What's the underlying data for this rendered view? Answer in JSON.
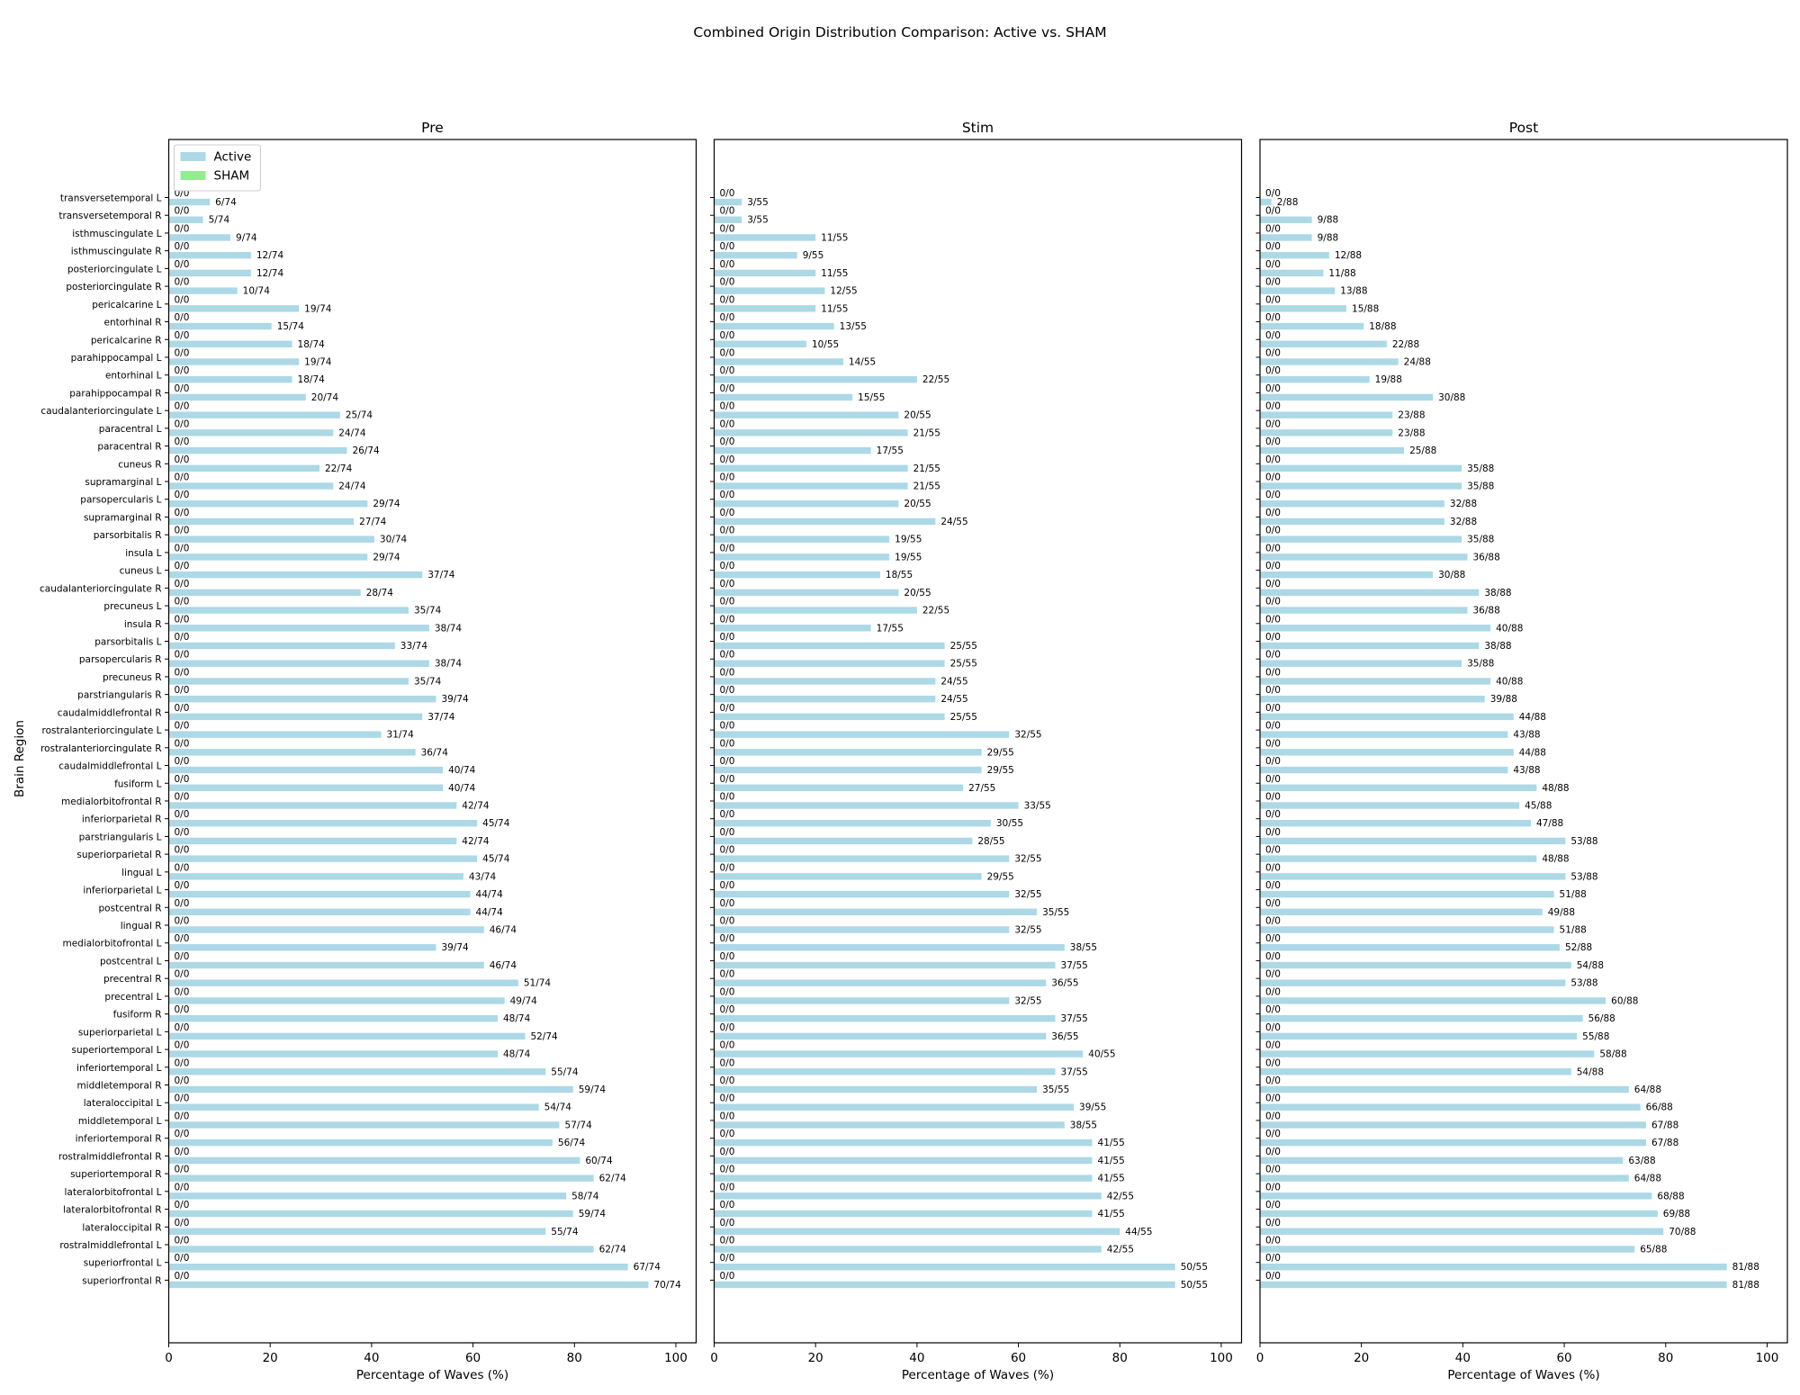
{
  "title": "Combined Origin Distribution Comparison: Active vs. SHAM",
  "chart_data": {
    "type": "bar",
    "orientation": "horizontal",
    "ylabel": "Brain Region",
    "xlabel": "Percentage of Waves (%)",
    "xlim": [
      0,
      104
    ],
    "xticks": [
      0,
      20,
      40,
      60,
      80,
      100
    ],
    "legend": {
      "placement": "top-left",
      "entries": [
        "Active",
        "SHAM"
      ]
    },
    "series_colors": {
      "Active": "#add8e6",
      "SHAM": "#90ee90"
    },
    "sham_label": "0/0",
    "categories": [
      "transversetemporal L",
      "transversetemporal R",
      "isthmuscingulate L",
      "isthmuscingulate R",
      "posteriorcingulate L",
      "posteriorcingulate R",
      "pericalcarine L",
      "entorhinal R",
      "pericalcarine R",
      "parahippocampal L",
      "entorhinal L",
      "parahippocampal R",
      "caudalanteriorcingulate L",
      "paracentral L",
      "paracentral R",
      "cuneus R",
      "supramarginal L",
      "parsopercularis L",
      "supramarginal R",
      "parsorbitalis R",
      "insula L",
      "cuneus L",
      "caudalanteriorcingulate R",
      "precuneus L",
      "insula R",
      "parsorbitalis L",
      "parsopercularis R",
      "precuneus R",
      "parstriangularis R",
      "caudalmiddlefrontal R",
      "rostralanteriorcingulate L",
      "rostralanteriorcingulate R",
      "caudalmiddlefrontal L",
      "fusiform L",
      "medialorbitofrontal R",
      "inferiorparietal R",
      "parstriangularis L",
      "superiorparietal R",
      "lingual L",
      "inferiorparietal L",
      "postcentral R",
      "lingual R",
      "medialorbitofrontal L",
      "postcentral L",
      "precentral R",
      "precentral L",
      "fusiform R",
      "superiorparietal L",
      "superiortemporal L",
      "inferiortemporal L",
      "middletemporal R",
      "lateraloccipital L",
      "middletemporal L",
      "inferiortemporal R",
      "rostralmiddlefrontal R",
      "superiortemporal R",
      "lateralorbitofrontal L",
      "lateralorbitofrontal R",
      "lateraloccipital R",
      "rostralmiddlefrontal L",
      "superiorfrontal L",
      "superiorfrontal R"
    ],
    "panels": [
      {
        "title": "Pre",
        "total": 74,
        "active_counts": [
          6,
          5,
          9,
          12,
          12,
          10,
          19,
          15,
          18,
          19,
          18,
          20,
          25,
          24,
          26,
          22,
          24,
          29,
          27,
          30,
          29,
          37,
          28,
          35,
          38,
          33,
          38,
          35,
          39,
          37,
          31,
          36,
          40,
          40,
          42,
          45,
          42,
          45,
          43,
          44,
          44,
          46,
          39,
          46,
          51,
          49,
          48,
          52,
          48,
          55,
          59,
          54,
          57,
          56,
          60,
          62,
          58,
          59,
          55,
          62,
          67,
          70
        ],
        "sham_counts": [
          0,
          0,
          0,
          0,
          0,
          0,
          0,
          0,
          0,
          0,
          0,
          0,
          0,
          0,
          0,
          0,
          0,
          0,
          0,
          0,
          0,
          0,
          0,
          0,
          0,
          0,
          0,
          0,
          0,
          0,
          0,
          0,
          0,
          0,
          0,
          0,
          0,
          0,
          0,
          0,
          0,
          0,
          0,
          0,
          0,
          0,
          0,
          0,
          0,
          0,
          0,
          0,
          0,
          0,
          0,
          0,
          0,
          0,
          0,
          0,
          0,
          0
        ],
        "labels": [
          "6/74",
          "5/74",
          "9/74",
          "12/74",
          "12/74",
          "10/74",
          "19/74",
          "15/74",
          "18/74",
          "19/74",
          "18/74",
          "20/74",
          "25/74",
          "24/74",
          "26/74",
          "22/74",
          "24/74",
          "29/74",
          "27/74",
          "30/74",
          "29/74",
          "37/74",
          "28/74",
          "35/74",
          "38/74",
          "33/74",
          "38/74",
          "35/74",
          "39/74",
          "37/74",
          "31/74",
          "36/74",
          "40/74",
          "40/74",
          "42/74",
          "45/74",
          "42/74",
          "45/74",
          "43/74",
          "44/74",
          "44/74",
          "46/74",
          "39/74",
          "46/74",
          "51/74",
          "49/74",
          "48/74",
          "52/74",
          "48/74",
          "55/74",
          "59/74",
          "54/74",
          "57/74",
          "56/74",
          "60/74",
          "62/74",
          "58/74",
          "59/74",
          "55/74",
          "62/74",
          "67/74",
          "70/74"
        ]
      },
      {
        "title": "Stim",
        "total": 55,
        "active_counts": [
          3,
          3,
          11,
          9,
          11,
          12,
          11,
          13,
          10,
          14,
          22,
          15,
          20,
          21,
          17,
          21,
          21,
          20,
          24,
          19,
          19,
          18,
          20,
          22,
          17,
          25,
          25,
          24,
          24,
          25,
          32,
          29,
          29,
          27,
          33,
          30,
          28,
          32,
          29,
          32,
          35,
          32,
          38,
          37,
          36,
          32,
          37,
          36,
          40,
          37,
          35,
          39,
          38,
          41,
          41,
          41,
          42,
          41,
          44,
          42,
          50,
          50
        ],
        "sham_counts": [
          0,
          0,
          0,
          0,
          0,
          0,
          0,
          0,
          0,
          0,
          0,
          0,
          0,
          0,
          0,
          0,
          0,
          0,
          0,
          0,
          0,
          0,
          0,
          0,
          0,
          0,
          0,
          0,
          0,
          0,
          0,
          0,
          0,
          0,
          0,
          0,
          0,
          0,
          0,
          0,
          0,
          0,
          0,
          0,
          0,
          0,
          0,
          0,
          0,
          0,
          0,
          0,
          0,
          0,
          0,
          0,
          0,
          0,
          0,
          0,
          0,
          0
        ],
        "labels": [
          "3/55",
          "3/55",
          "11/55",
          "9/55",
          "11/55",
          "12/55",
          "11/55",
          "13/55",
          "10/55",
          "14/55",
          "22/55",
          "15/55",
          "20/55",
          "21/55",
          "17/55",
          "21/55",
          "21/55",
          "20/55",
          "24/55",
          "19/55",
          "19/55",
          "18/55",
          "20/55",
          "22/55",
          "17/55",
          "25/55",
          "25/55",
          "24/55",
          "24/55",
          "25/55",
          "32/55",
          "29/55",
          "29/55",
          "27/55",
          "33/55",
          "30/55",
          "28/55",
          "32/55",
          "29/55",
          "32/55",
          "35/55",
          "32/55",
          "38/55",
          "37/55",
          "36/55",
          "32/55",
          "37/55",
          "36/55",
          "40/55",
          "37/55",
          "35/55",
          "39/55",
          "38/55",
          "41/55",
          "41/55",
          "41/55",
          "42/55",
          "41/55",
          "44/55",
          "42/55",
          "50/55",
          "50/55"
        ]
      },
      {
        "title": "Post",
        "total": 88,
        "active_counts": [
          2,
          9,
          9,
          12,
          11,
          13,
          15,
          18,
          22,
          24,
          19,
          30,
          23,
          23,
          25,
          35,
          35,
          32,
          32,
          35,
          36,
          30,
          38,
          36,
          40,
          38,
          35,
          40,
          39,
          44,
          43,
          44,
          43,
          48,
          45,
          47,
          53,
          48,
          53,
          51,
          49,
          51,
          52,
          54,
          53,
          60,
          56,
          55,
          58,
          54,
          64,
          66,
          67,
          67,
          63,
          64,
          68,
          69,
          70,
          65,
          81,
          81
        ],
        "sham_counts": [
          0,
          0,
          0,
          0,
          0,
          0,
          0,
          0,
          0,
          0,
          0,
          0,
          0,
          0,
          0,
          0,
          0,
          0,
          0,
          0,
          0,
          0,
          0,
          0,
          0,
          0,
          0,
          0,
          0,
          0,
          0,
          0,
          0,
          0,
          0,
          0,
          0,
          0,
          0,
          0,
          0,
          0,
          0,
          0,
          0,
          0,
          0,
          0,
          0,
          0,
          0,
          0,
          0,
          0,
          0,
          0,
          0,
          0,
          0,
          0,
          0,
          0
        ],
        "labels": [
          "2/88",
          "9/88",
          "9/88",
          "12/88",
          "11/88",
          "13/88",
          "15/88",
          "18/88",
          "22/88",
          "24/88",
          "19/88",
          "30/88",
          "23/88",
          "23/88",
          "25/88",
          "35/88",
          "35/88",
          "32/88",
          "32/88",
          "35/88",
          "36/88",
          "30/88",
          "38/88",
          "36/88",
          "40/88",
          "38/88",
          "35/88",
          "40/88",
          "39/88",
          "44/88",
          "43/88",
          "44/88",
          "43/88",
          "48/88",
          "45/88",
          "47/88",
          "53/88",
          "48/88",
          "53/88",
          "51/88",
          "49/88",
          "51/88",
          "52/88",
          "54/88",
          "53/88",
          "60/88",
          "56/88",
          "55/88",
          "58/88",
          "54/88",
          "64/88",
          "66/88",
          "67/88",
          "67/88",
          "63/88",
          "64/88",
          "68/88",
          "69/88",
          "70/88",
          "65/88",
          "81/88",
          "81/88"
        ]
      }
    ]
  }
}
